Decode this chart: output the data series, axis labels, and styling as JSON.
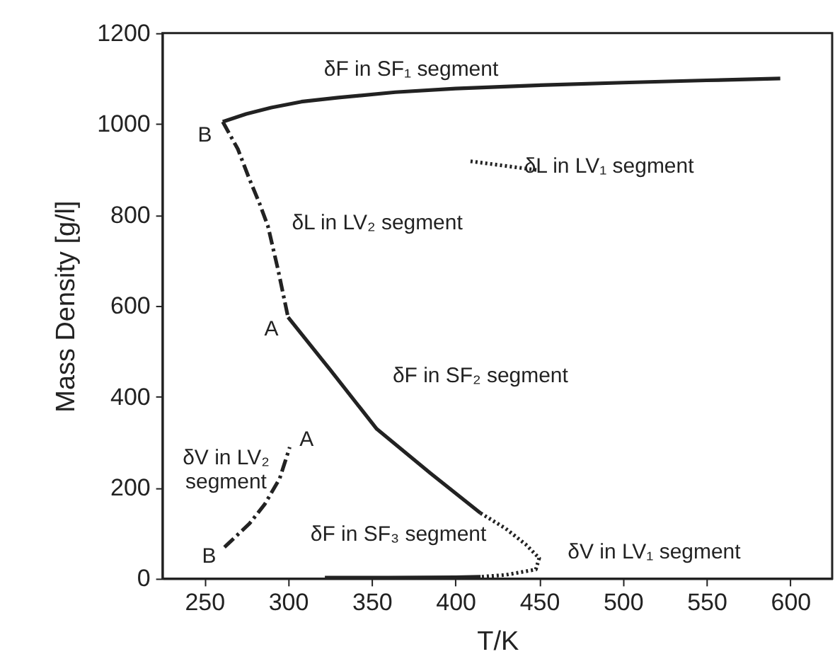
{
  "chart_data": {
    "type": "line",
    "xlabel": "T/K",
    "ylabel": "Mass Density [g/l]",
    "xlim": [
      225,
      625
    ],
    "ylim": [
      0,
      1200
    ],
    "xticks": [
      250,
      300,
      350,
      400,
      450,
      500,
      550,
      600
    ],
    "yticks": [
      0,
      200,
      400,
      600,
      800,
      1000,
      1200
    ],
    "grid": false,
    "series": [
      {
        "color": "#222222",
        "line_style": "solid",
        "x": [
          261,
          275,
          290,
          308,
          330,
          364,
          400,
          448,
          500,
          550,
          594
        ],
        "values": [
          1005,
          1022,
          1036,
          1049,
          1058,
          1070,
          1078,
          1085,
          1091,
          1096,
          1100
        ]
      },
      {
        "color": "#222222",
        "line_style": "dashdot",
        "x": [
          261,
          270,
          277,
          283,
          288,
          294,
          300
        ],
        "values": [
          1005,
          945,
          878,
          825,
          775,
          680,
          575
        ]
      },
      {
        "color": "#222222",
        "line_style": "solid",
        "x": [
          300,
          325,
          353,
          385,
          415
        ],
        "values": [
          575,
          460,
          329,
          232,
          144
        ]
      },
      {
        "color": "#222222",
        "line_style": "dotted",
        "x": [
          415,
          430,
          442,
          450,
          448,
          430,
          415
        ],
        "values": [
          144,
          110,
          75,
          45,
          20,
          8,
          4
        ]
      },
      {
        "color": "#222222",
        "line_style": "solid",
        "x": [
          322,
          360,
          400,
          415
        ],
        "values": [
          2,
          2,
          3,
          4
        ]
      },
      {
        "color": "#222222",
        "line_style": "dotted",
        "x": [
          409,
          450
        ],
        "values": [
          918,
          898
        ]
      },
      {
        "color": "#222222",
        "line_style": "dashdot",
        "x": [
          262,
          277,
          286,
          295,
          301
        ],
        "values": [
          69,
          121,
          163,
          220,
          289
        ]
      }
    ],
    "annotations": [
      "δF in SF₁ segment",
      "δL in LV₁ segment",
      "δL in LV₂ segment",
      "B",
      "A",
      "δF in SF₂ segment",
      "δV in LV₂\nsegment",
      "A",
      "B",
      "δF in SF₃ segment",
      "δV in LV₁ segment"
    ]
  }
}
